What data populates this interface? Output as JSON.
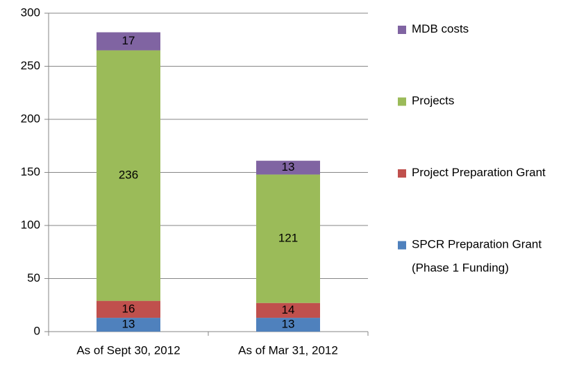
{
  "chart_data": {
    "type": "stacked_bar",
    "categories": [
      "As of Sept 30, 2012",
      "As of Mar 31, 2012"
    ],
    "series": [
      {
        "name": "SPCR Preparation Grant (Phase 1 Funding)",
        "color": "#4f81bd",
        "values": [
          13,
          13
        ]
      },
      {
        "name": "Project Preparation Grant",
        "color": "#c0504d",
        "values": [
          16,
          14
        ]
      },
      {
        "name": "Projects",
        "color": "#9bbb59",
        "values": [
          236,
          121
        ]
      },
      {
        "name": "MDB costs",
        "color": "#8064a2",
        "values": [
          17,
          13
        ]
      }
    ],
    "ylim": [
      0,
      300
    ],
    "yticks": [
      0,
      50,
      100,
      150,
      200,
      250,
      300
    ],
    "grid": true,
    "legend": "right"
  }
}
